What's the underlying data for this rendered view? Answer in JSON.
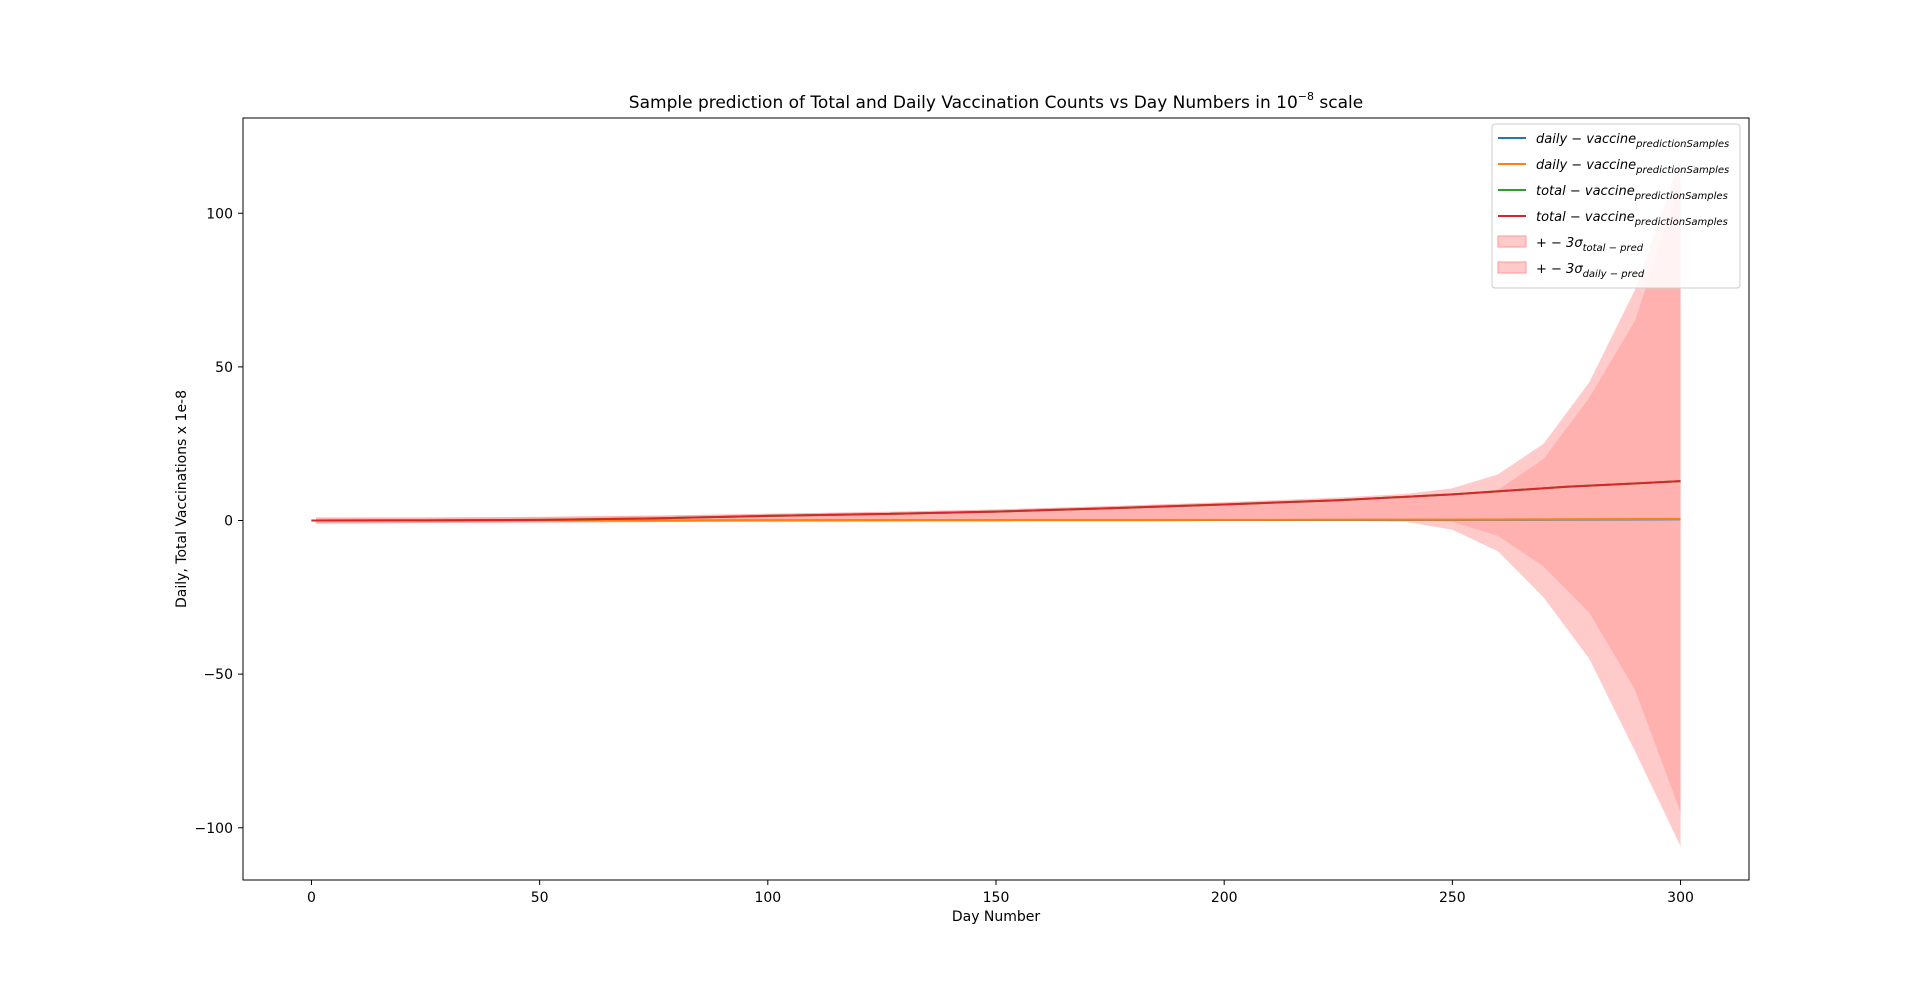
{
  "chart_data": {
    "type": "line",
    "title": "Sample prediction of Total and Daily Vaccination Counts vs Day Numbers in 10",
    "title_superscript": "−8",
    "title_suffix": " scale",
    "xlabel": "Day Number",
    "ylabel": "Daily, Total Vaccinations x 1e-8",
    "xlim": [
      -15,
      315
    ],
    "ylim": [
      -117,
      131
    ],
    "xticks": [
      0,
      50,
      100,
      150,
      200,
      250,
      300
    ],
    "xtick_labels": [
      "0",
      "50",
      "100",
      "150",
      "200",
      "250",
      "300"
    ],
    "yticks": [
      -100,
      -50,
      0,
      50,
      100
    ],
    "ytick_labels": [
      "−100",
      "−50",
      "0",
      "50",
      "100"
    ],
    "grid": false,
    "legend_position": "top-right",
    "colors": {
      "blue": "#1f77b4",
      "orange": "#ff7f0e",
      "green": "#2ca02c",
      "red": "#d62728",
      "band": "#ff9896"
    },
    "series": [
      {
        "legend_main": "daily − vaccine",
        "legend_sub": "predictionSamples",
        "color": "#1f77b4",
        "x": [
          0,
          50,
          100,
          150,
          200,
          250,
          275,
          300
        ],
        "y": [
          0.0,
          0.0,
          0.05,
          0.1,
          0.15,
          0.2,
          0.3,
          0.4
        ]
      },
      {
        "legend_main": "daily − vaccine",
        "legend_sub": "predictionSamples",
        "color": "#ff7f0e",
        "x": [
          0,
          50,
          100,
          150,
          200,
          250,
          275,
          300
        ],
        "y": [
          0.0,
          0.0,
          0.1,
          0.15,
          0.2,
          0.3,
          0.4,
          0.5
        ]
      },
      {
        "legend_main": "total − vaccine",
        "legend_sub": "predictionSamples",
        "color": "#2ca02c",
        "x": [
          0,
          25,
          50,
          75,
          100,
          125,
          150,
          175,
          200,
          225,
          250,
          275,
          300
        ],
        "y": [
          0.0,
          0.05,
          0.2,
          0.7,
          1.5,
          2.1,
          2.9,
          4.0,
          5.2,
          6.6,
          8.5,
          11.0,
          12.8
        ]
      },
      {
        "legend_main": "total − vaccine",
        "legend_sub": "predictionSamples",
        "color": "#d62728",
        "x": [
          0,
          25,
          50,
          75,
          100,
          125,
          150,
          175,
          200,
          225,
          250,
          275,
          300
        ],
        "y": [
          0.0,
          0.05,
          0.2,
          0.7,
          1.5,
          2.1,
          2.9,
          4.0,
          5.2,
          6.6,
          8.5,
          11.0,
          12.8
        ]
      }
    ],
    "bands": [
      {
        "legend_main": "+ − 3σ",
        "legend_sub": "total − pred",
        "color": "#ff9896",
        "opacity": 0.5,
        "x": [
          1,
          25,
          50,
          75,
          100,
          125,
          150,
          175,
          200,
          225,
          240,
          250,
          260,
          270,
          280,
          290,
          300
        ],
        "upper": [
          1.0,
          1.0,
          1.2,
          1.6,
          2.2,
          2.8,
          3.6,
          4.7,
          6.0,
          7.5,
          8.7,
          10.5,
          15.0,
          25.0,
          45.0,
          75.0,
          118.0
        ],
        "lower": [
          -1.0,
          -0.8,
          -0.7,
          -0.5,
          -0.3,
          -0.2,
          0.0,
          0.0,
          0.0,
          0.0,
          -0.5,
          -3.0,
          -10.0,
          -25.0,
          -45.0,
          -75.0,
          -106.0
        ]
      },
      {
        "legend_main": "+ − 3σ",
        "legend_sub": "daily − pred",
        "color": "#ff9896",
        "opacity": 0.5,
        "x": [
          1,
          25,
          50,
          75,
          100,
          125,
          150,
          175,
          200,
          225,
          240,
          250,
          260,
          270,
          280,
          290,
          300
        ],
        "upper": [
          1.0,
          1.0,
          1.2,
          1.6,
          2.2,
          2.8,
          3.6,
          4.7,
          5.8,
          7.0,
          7.8,
          8.5,
          10.0,
          20.0,
          40.0,
          65.0,
          110.0
        ],
        "lower": [
          -1.0,
          -0.8,
          -0.7,
          -0.5,
          -0.3,
          -0.2,
          0.0,
          0.0,
          0.0,
          0.0,
          0.0,
          -0.5,
          -5.0,
          -15.0,
          -30.0,
          -55.0,
          -95.0
        ]
      }
    ]
  }
}
